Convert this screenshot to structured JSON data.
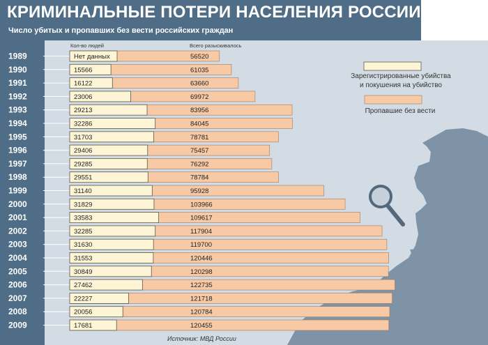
{
  "header": {
    "title": "КРИМИНАЛЬНЫЕ ПОТЕРИ НАСЕЛЕНИЯ РОССИИ",
    "subtitle": "Число убитых и пропавших без вести российских граждан"
  },
  "source": "Источник: МВД России",
  "colors": {
    "header_bg": "#4f6d86",
    "panel_bg": "#d3dce5",
    "murders": "#fdf5d6",
    "missing": "#f7c9a5",
    "silhouette": "#7e93a6"
  },
  "chart_data": {
    "type": "bar",
    "orientation": "horizontal",
    "title": "КРИМИНАЛЬНЫЕ ПОТЕРИ НАСЕЛЕНИЯ РОССИИ",
    "subtitle": "Число убитых и пропавших без вести российских граждан",
    "column_labels": [
      "Кол-во людей",
      "Всего разыскивалось"
    ],
    "categories": [
      "1989",
      "1990",
      "1991",
      "1992",
      "1993",
      "1994",
      "1995",
      "1996",
      "1997",
      "1998",
      "1999",
      "2000",
      "2001",
      "2002",
      "2003",
      "2004",
      "2005",
      "2006",
      "2007",
      "2008",
      "2009"
    ],
    "series": [
      {
        "name": "Зарегистрированные убийства и покушения на убийство",
        "values": [
          null,
          15566,
          16122,
          23006,
          29213,
          32286,
          31703,
          29406,
          29285,
          29551,
          31140,
          31829,
          33583,
          32285,
          31630,
          31553,
          30849,
          27462,
          22227,
          20056,
          17681
        ],
        "labels": [
          "Нет данных",
          "15566",
          "16122",
          "23006",
          "29213",
          "32286",
          "31703",
          "29406",
          "29285",
          "29551",
          "31140",
          "31829",
          "33583",
          "32285",
          "31630",
          "31553",
          "30849",
          "27462",
          "22227",
          "20056",
          "17681"
        ],
        "color": "#fdf5d6"
      },
      {
        "name": "Пропавшие без вести",
        "values": [
          56520,
          61035,
          63660,
          69972,
          83956,
          84045,
          78781,
          75457,
          76292,
          78784,
          95928,
          103966,
          109617,
          117904,
          119700,
          120446,
          120298,
          122735,
          121718,
          120784,
          120455
        ],
        "labels": [
          "56520",
          "61035",
          "63660",
          "69972",
          "83956",
          "84045",
          "78781",
          "75457",
          "76292",
          "78784",
          "95928",
          "103966",
          "109617",
          "117904",
          "119700",
          "120446",
          "120298",
          "122735",
          "121718",
          "120784",
          "120455"
        ],
        "color": "#f7c9a5"
      }
    ],
    "legend": {
      "position": "right",
      "items": [
        {
          "label_lines": [
            "Зарегистрированные убийства",
            "и покушения на убийство"
          ],
          "color": "#fdf5d6"
        },
        {
          "label_lines": [
            "Пропавшие без вести"
          ],
          "color": "#f7c9a5"
        }
      ]
    },
    "grid": false
  }
}
